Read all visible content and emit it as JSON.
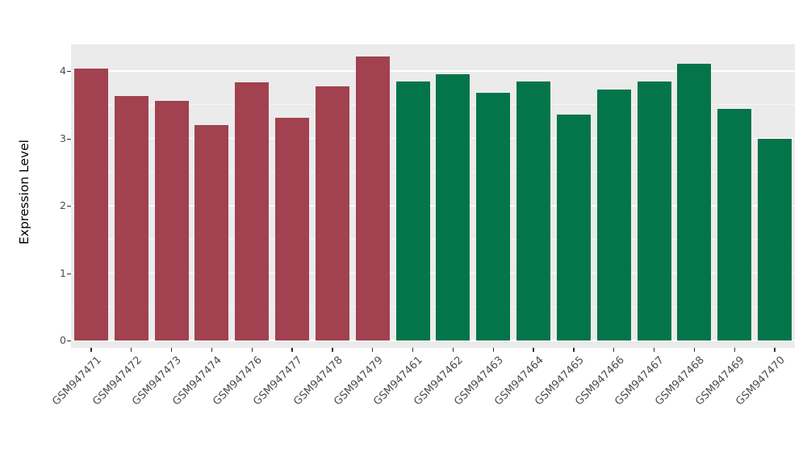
{
  "chart_data": {
    "type": "bar",
    "title": "",
    "xlabel": "",
    "ylabel": "Expression Level",
    "ylim": [
      0,
      4.4
    ],
    "yticks": [
      0,
      1,
      2,
      3,
      4
    ],
    "grid": true,
    "legend_position": "none",
    "panel_background": "#EBEBEB",
    "gridline_color": "#FFFFFF",
    "tick_label_color": "#4D4D4D",
    "categories": [
      "GSM947471",
      "GSM947472",
      "GSM947473",
      "GSM947474",
      "GSM947476",
      "GSM947477",
      "GSM947478",
      "GSM947479",
      "GSM947461",
      "GSM947462",
      "GSM947463",
      "GSM947464",
      "GSM947465",
      "GSM947466",
      "GSM947467",
      "GSM947468",
      "GSM947469",
      "GSM947470"
    ],
    "values": [
      4.03,
      3.63,
      3.56,
      3.2,
      3.83,
      3.3,
      3.77,
      4.22,
      3.84,
      3.95,
      3.68,
      3.84,
      3.35,
      3.73,
      3.85,
      4.11,
      3.44,
      3.0
    ],
    "bar_groups": [
      "group1",
      "group1",
      "group1",
      "group1",
      "group1",
      "group1",
      "group1",
      "group1",
      "group2",
      "group2",
      "group2",
      "group2",
      "group2",
      "group2",
      "group2",
      "group2",
      "group2",
      "group2"
    ],
    "group_colors": {
      "group1": "#A2414F",
      "group2": "#04744A"
    }
  }
}
